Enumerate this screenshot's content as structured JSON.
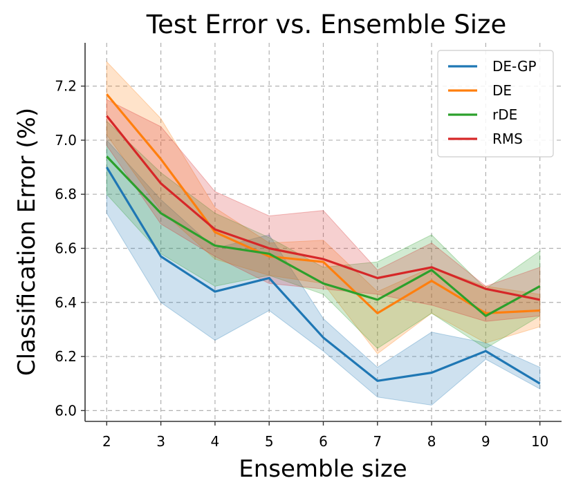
{
  "chart_data": {
    "type": "line",
    "title": "Test Error vs. Ensemble Size",
    "xlabel": "Ensemble size",
    "ylabel": "Classification Error (%)",
    "x": [
      2,
      3,
      4,
      5,
      6,
      7,
      8,
      9,
      10
    ],
    "xlim": [
      1.6,
      10.4
    ],
    "ylim": [
      5.96,
      7.36
    ],
    "yticks": [
      6.0,
      6.2,
      6.4,
      6.6,
      6.8,
      7.0,
      7.2
    ],
    "ytick_labels": [
      "6.0",
      "6.2",
      "6.4",
      "6.6",
      "6.8",
      "7.0",
      "7.2"
    ],
    "xtick_labels": [
      "2",
      "3",
      "4",
      "5",
      "6",
      "7",
      "8",
      "9",
      "10"
    ],
    "grid": true,
    "legend_position": "top-right",
    "series": [
      {
        "name": "DE-GP",
        "color": "#1f77b4",
        "values": [
          6.9,
          6.57,
          6.44,
          6.49,
          6.27,
          6.11,
          6.14,
          6.22,
          6.1
        ],
        "lower": [
          6.73,
          6.4,
          6.26,
          6.37,
          6.22,
          6.05,
          6.02,
          6.19,
          6.08
        ],
        "upper": [
          7.0,
          6.78,
          6.6,
          6.65,
          6.34,
          6.16,
          6.29,
          6.25,
          6.16
        ]
      },
      {
        "name": "DE",
        "color": "#ff7f0e",
        "values": [
          7.17,
          6.93,
          6.66,
          6.57,
          6.55,
          6.36,
          6.48,
          6.36,
          6.37
        ],
        "lower": [
          7.02,
          6.74,
          6.56,
          6.5,
          6.47,
          6.21,
          6.36,
          6.25,
          6.31
        ],
        "upper": [
          7.29,
          7.08,
          6.75,
          6.62,
          6.63,
          6.44,
          6.53,
          6.46,
          6.43
        ]
      },
      {
        "name": "rDE",
        "color": "#2ca02c",
        "values": [
          6.94,
          6.73,
          6.61,
          6.58,
          6.47,
          6.41,
          6.52,
          6.35,
          6.46
        ],
        "lower": [
          6.8,
          6.58,
          6.46,
          6.5,
          6.43,
          6.23,
          6.36,
          6.23,
          6.35
        ],
        "upper": [
          7.07,
          6.88,
          6.73,
          6.64,
          6.53,
          6.55,
          6.65,
          6.45,
          6.59
        ]
      },
      {
        "name": "RMS",
        "color": "#d62728",
        "values": [
          7.09,
          6.84,
          6.67,
          6.6,
          6.56,
          6.49,
          6.53,
          6.45,
          6.41
        ],
        "lower": [
          6.98,
          6.69,
          6.57,
          6.47,
          6.45,
          6.43,
          6.39,
          6.33,
          6.35
        ],
        "upper": [
          7.15,
          7.05,
          6.81,
          6.72,
          6.74,
          6.52,
          6.62,
          6.46,
          6.53
        ]
      }
    ]
  }
}
